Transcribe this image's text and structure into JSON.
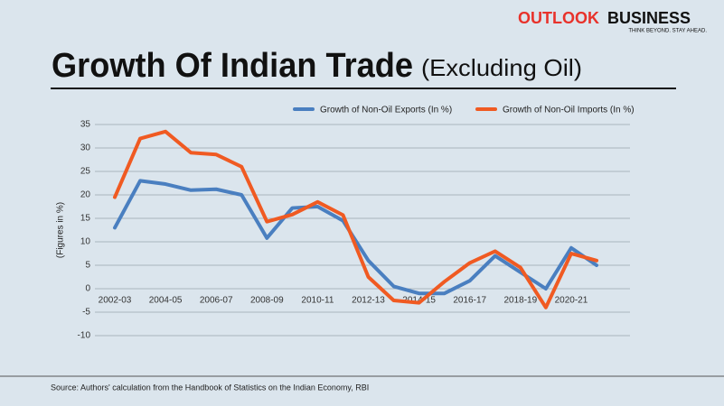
{
  "logo": {
    "brand": "OUTLOOK",
    "brand2": "BUSINESS",
    "tagline": "THINK BEYOND. STAY AHEAD."
  },
  "chart_data": {
    "type": "line",
    "title": "Growth Of Indian Trade",
    "subtitle": "(Excluding Oil)",
    "y_label": "(Figures in %)",
    "categories": [
      "2002-03",
      null,
      "2004-05",
      null,
      "2006-07",
      null,
      "2008-09",
      null,
      "2010-11",
      null,
      "2012-13",
      null,
      "2014-15",
      null,
      "2016-17",
      null,
      "2018-19",
      null,
      "2020-21",
      null
    ],
    "series": [
      {
        "name": "Growth of Non-Oil Exports (In %)",
        "color": "#4a7fc0",
        "values": [
          13,
          23,
          22.3,
          21,
          21.2,
          20,
          10.8,
          17.2,
          17.5,
          14.5,
          6,
          0.5,
          -1,
          -1,
          1.7,
          7,
          3.5,
          0,
          8.7,
          5
        ]
      },
      {
        "name": "Growth of Non-Oil Imports (In %)",
        "color": "#f05a22",
        "values": [
          19.5,
          32,
          33.5,
          29,
          28.6,
          26,
          14.3,
          15.8,
          18.5,
          15.7,
          2.5,
          -2.5,
          -3,
          1.5,
          5.5,
          8,
          4.5,
          -4,
          7.5,
          6
        ]
      }
    ],
    "ylim": [
      -10,
      35
    ],
    "yticks": [
      -10,
      -5,
      0,
      5,
      10,
      15,
      20,
      25,
      30,
      35
    ],
    "grid": true,
    "legend": "top-right",
    "source": "Source: Authors' calculation from the Handbook of Statistics on the Indian Economy, RBI"
  }
}
